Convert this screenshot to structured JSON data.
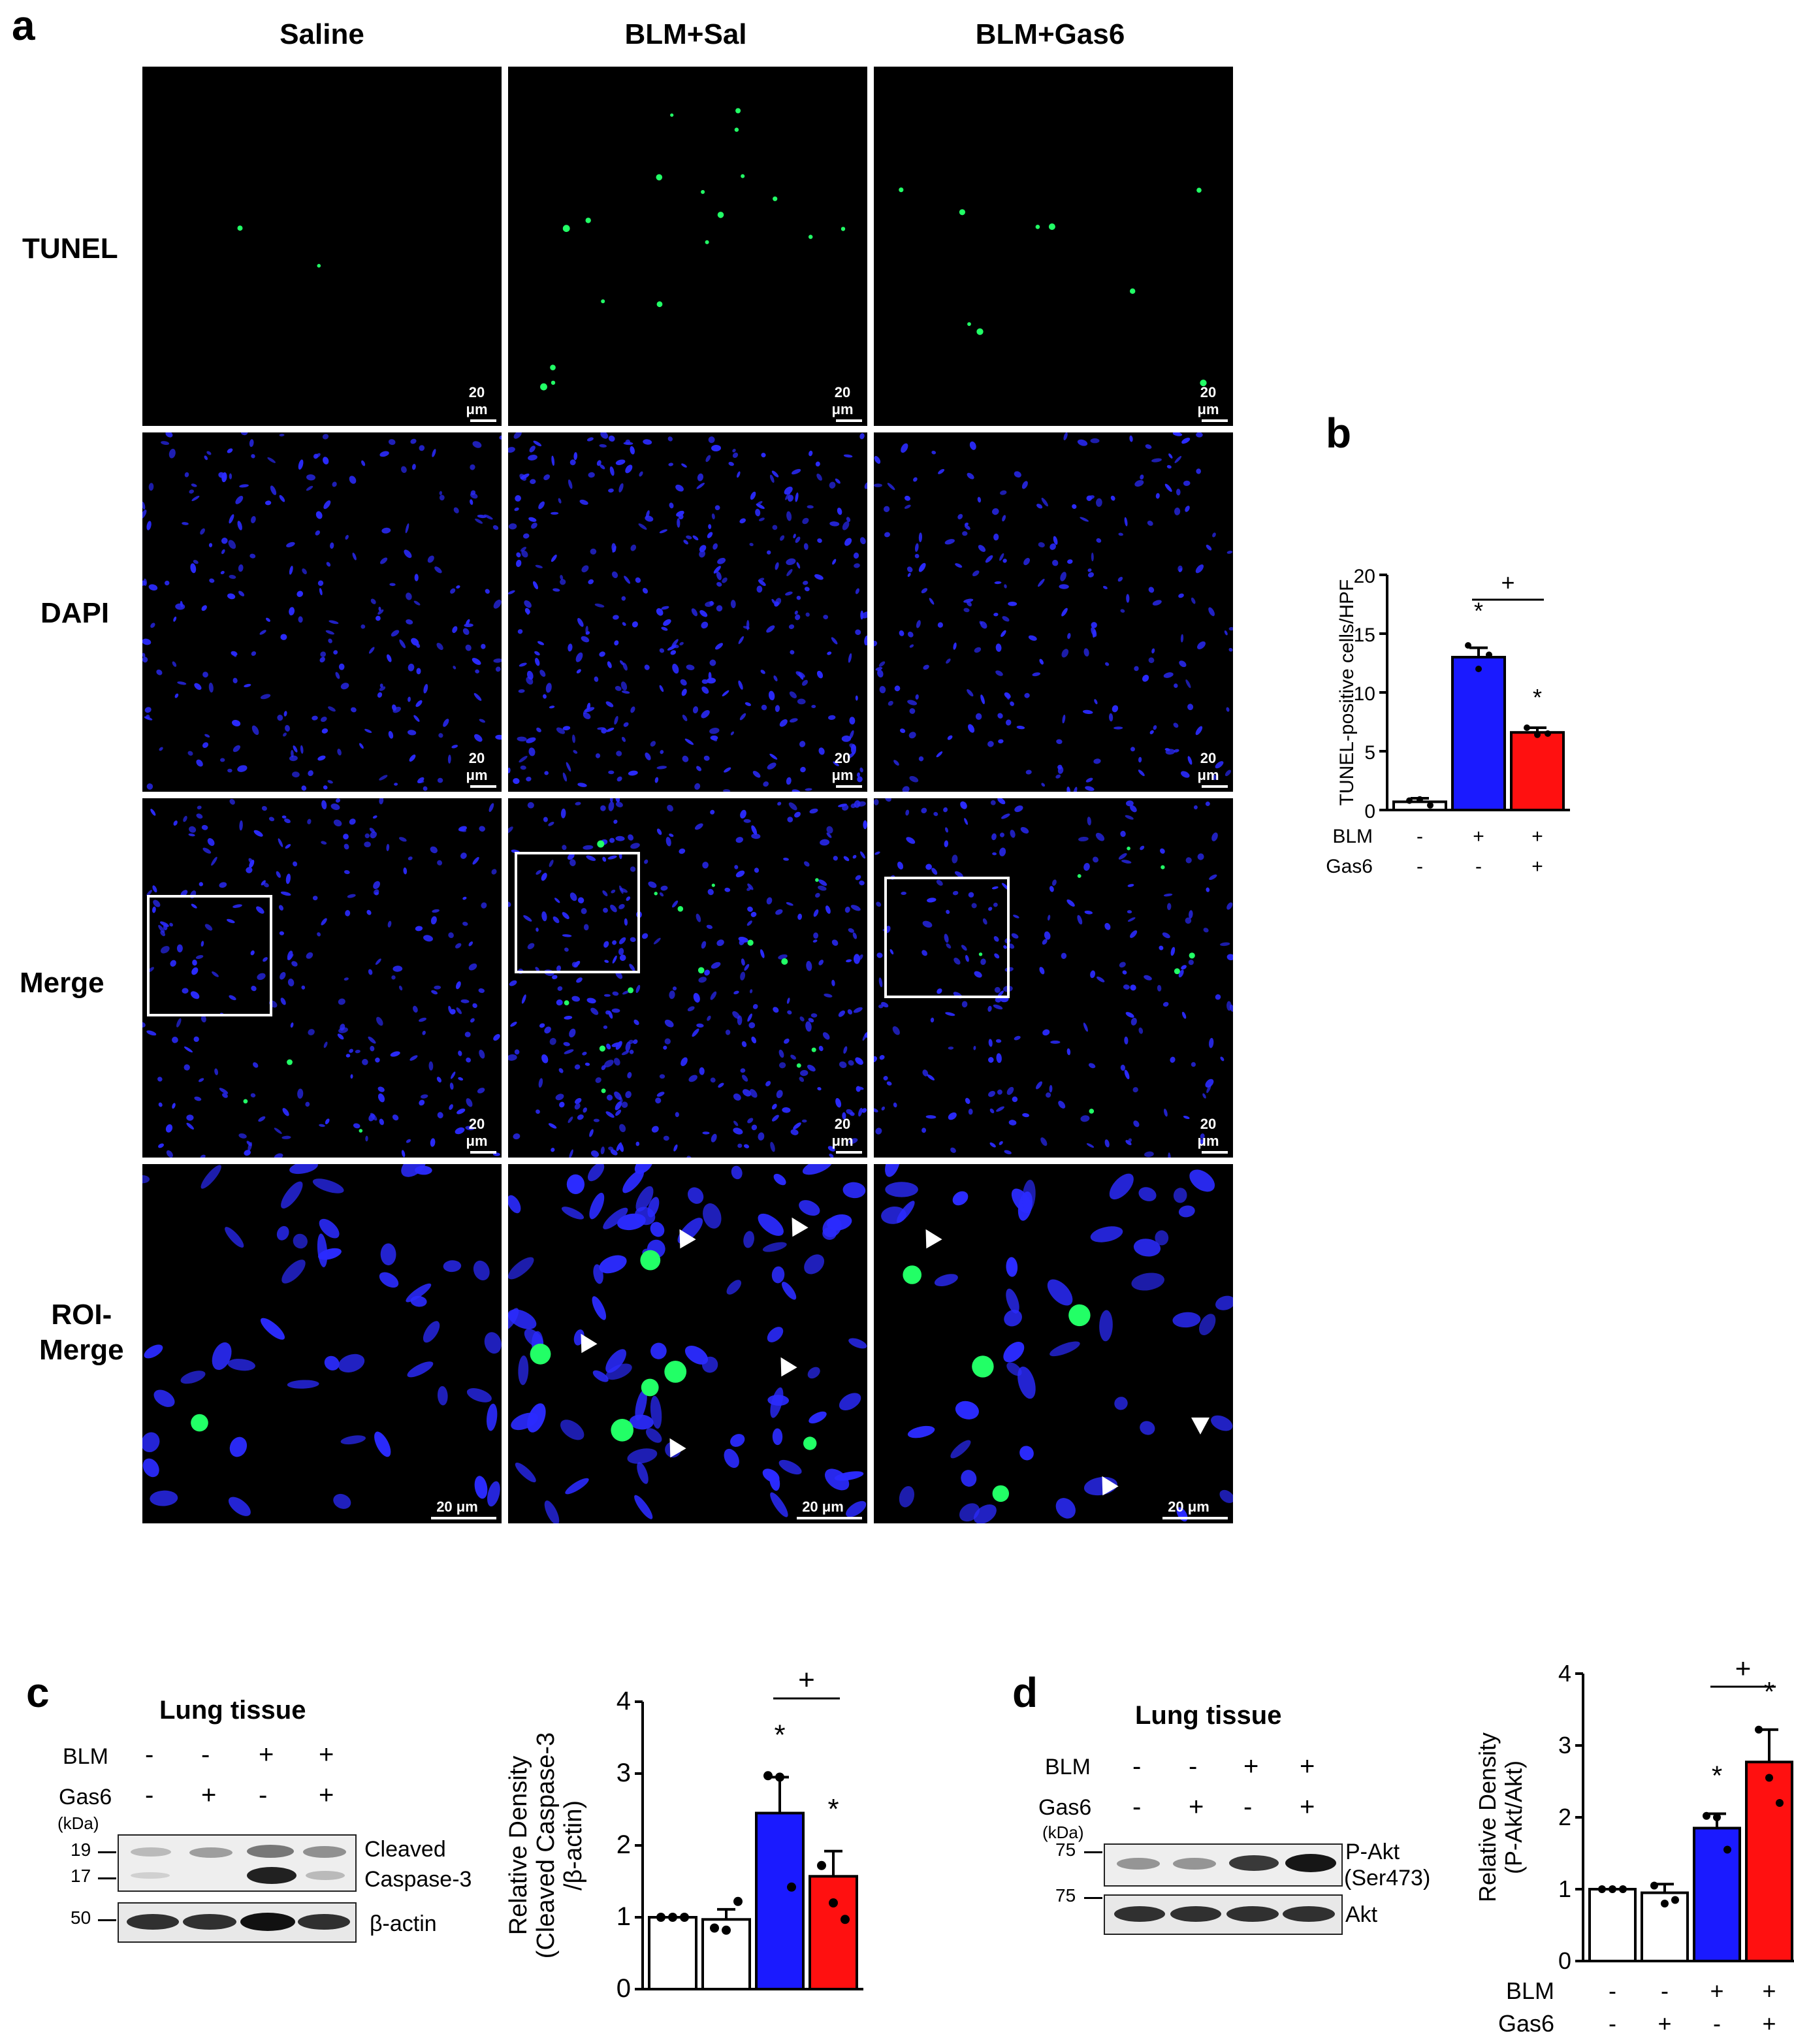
{
  "panel_a": {
    "letter": "a",
    "columns": [
      "Saline",
      "BLM+Sal",
      "BLM+Gas6"
    ],
    "rows": [
      "TUNEL",
      "DAPI",
      "Merge",
      "ROI-\nMerge"
    ],
    "scale_label": "20 μm"
  },
  "panel_b": {
    "letter": "b",
    "row_labels": [
      "BLM",
      "Gas6"
    ],
    "signs": [
      [
        "-",
        "+",
        "+"
      ],
      [
        "-",
        "-",
        "+"
      ]
    ],
    "sig_star": "*",
    "sig_plus": "+"
  },
  "panel_c": {
    "letter": "c",
    "blot_title": "Lung tissue",
    "row_labels": [
      "BLM",
      "Gas6"
    ],
    "signs": [
      [
        "-",
        "-",
        "+",
        "+"
      ],
      [
        "-",
        "+",
        "-",
        "+"
      ]
    ],
    "kda_label": "(kDa)",
    "markers": [
      "19",
      "17",
      "50"
    ],
    "band_labels": [
      "Cleaved",
      "Caspase-3",
      "β-actin"
    ],
    "sig_star": "*",
    "sig_plus": "+"
  },
  "panel_d": {
    "letter": "d",
    "blot_title": "Lung tissue",
    "row_labels": [
      "BLM",
      "Gas6"
    ],
    "signs": [
      [
        "-",
        "-",
        "+",
        "+"
      ],
      [
        "-",
        "+",
        "-",
        "+"
      ]
    ],
    "kda_label": "(kDa)",
    "markers": [
      "75",
      "75"
    ],
    "band_labels": [
      "P-Akt",
      "(Ser473)",
      "Akt"
    ],
    "sig_star": "*",
    "sig_plus": "+"
  },
  "colors": {
    "white_bar": "#ffffff",
    "blue_bar": "#1a1aff",
    "red_bar": "#ff1010",
    "dapi": "#2b2bff",
    "tunel": "#22ff66"
  },
  "chart_data": [
    {
      "id": "b",
      "type": "bar",
      "categories": [
        "Saline",
        "BLM+Sal",
        "BLM+Gas6"
      ],
      "values": [
        0.7,
        13.0,
        6.6
      ],
      "errors": [
        0.3,
        0.8,
        0.4
      ],
      "points": [
        [
          0.8,
          0.9,
          0.4
        ],
        [
          14.0,
          12.0,
          13.2
        ],
        [
          7.0,
          6.4,
          6.5
        ]
      ],
      "colors": [
        "#ffffff",
        "#1a1aff",
        "#ff1010"
      ],
      "ylabel": "TUNEL-positive cells/HPF",
      "ylim": [
        0,
        20
      ],
      "yticks": [
        0,
        5,
        10,
        15,
        20
      ],
      "grid": false
    },
    {
      "id": "c",
      "type": "bar",
      "categories": [
        "Saline",
        "Gas6",
        "BLM+Sal",
        "BLM+Gas6"
      ],
      "values": [
        1.0,
        0.97,
        2.45,
        1.57
      ],
      "errors": [
        0.0,
        0.14,
        0.5,
        0.35
      ],
      "points": [
        [
          1.0,
          1.0,
          1.0
        ],
        [
          0.85,
          0.82,
          1.22
        ],
        [
          2.97,
          2.95,
          1.42
        ],
        [
          1.72,
          1.2,
          0.97
        ]
      ],
      "colors": [
        "#ffffff",
        "#ffffff",
        "#1a1aff",
        "#ff1010"
      ],
      "ylabel": "Relative Density\n(Cleaved Caspase-3\n/β-actin)",
      "ylim": [
        0,
        4
      ],
      "yticks": [
        0,
        1,
        2,
        3,
        4
      ],
      "grid": false
    },
    {
      "id": "d",
      "type": "bar",
      "categories": [
        "Saline",
        "Gas6",
        "BLM+Sal",
        "BLM+Gas6"
      ],
      "values": [
        1.0,
        0.95,
        1.85,
        2.77
      ],
      "errors": [
        0.0,
        0.12,
        0.2,
        0.45
      ],
      "points": [
        [
          1.0,
          1.0,
          1.0
        ],
        [
          1.05,
          0.8,
          0.85
        ],
        [
          2.02,
          2.0,
          1.55
        ],
        [
          3.22,
          2.55,
          2.2
        ]
      ],
      "colors": [
        "#ffffff",
        "#ffffff",
        "#1a1aff",
        "#ff1010"
      ],
      "ylabel": "Relative Density\n(P-Akt/Akt)",
      "ylim": [
        0,
        4
      ],
      "yticks": [
        0,
        1,
        2,
        3,
        4
      ],
      "grid": false
    }
  ]
}
